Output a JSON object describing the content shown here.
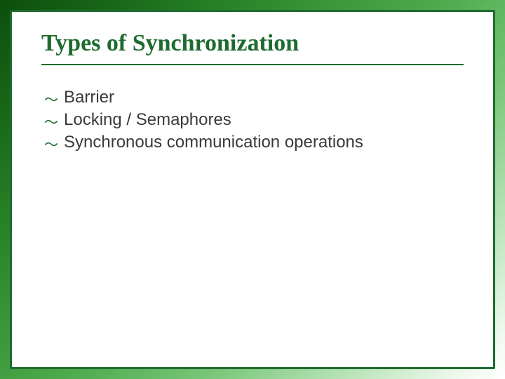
{
  "colors": {
    "title": "#1f6b2f",
    "rule": "#1f6b2f",
    "panel_border": "#1f6b2f",
    "bullet": "#1f6b2f",
    "body_text": "#3a3a3a"
  },
  "slide": {
    "title": "Types of Synchronization",
    "bullets": [
      "Barrier",
      "Locking / Semaphores",
      "Synchronous communication operations"
    ]
  }
}
